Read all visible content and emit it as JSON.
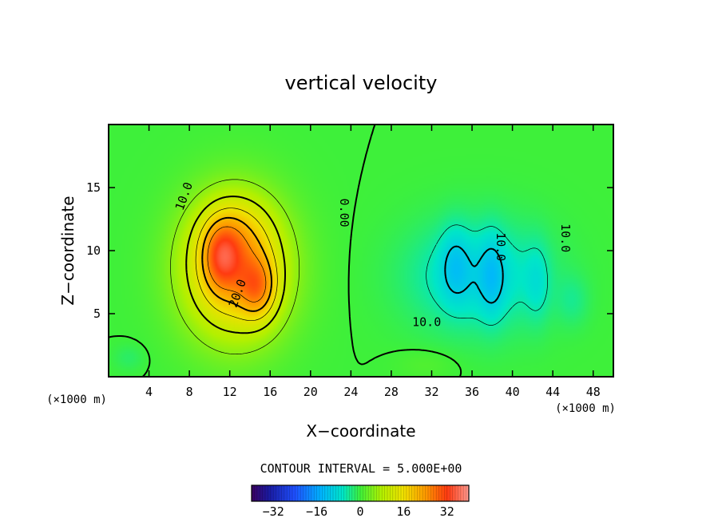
{
  "chart_data": {
    "type": "heatmap",
    "title": "vertical velocity",
    "xlabel": "X−coordinate",
    "ylabel": "Z−coordinate",
    "x_unit_left": "(×1000 m)",
    "x_unit_right": "(×1000 m)",
    "xlim": [
      0,
      50
    ],
    "ylim": [
      0,
      20
    ],
    "xticks": [
      4,
      8,
      12,
      16,
      20,
      24,
      28,
      32,
      36,
      40,
      44,
      48
    ],
    "yticks": [
      5,
      10,
      15
    ],
    "contour_interval_text": "CONTOUR INTERVAL = 5.000E+00",
    "contour_labels": [
      {
        "text": "10.0",
        "x": 7.5,
        "z": 14.3,
        "angle": -70
      },
      {
        "text": "20.0",
        "x": 12.8,
        "z": 6.6,
        "angle": -70
      },
      {
        "text": "0.00",
        "x": 23.3,
        "z": 13.0,
        "angle": 90
      },
      {
        "text": "10.0",
        "x": 38.8,
        "z": 10.3,
        "angle": 90
      },
      {
        "text": "10.0",
        "x": 45.2,
        "z": 11.0,
        "angle": 90
      },
      {
        "text": "10.0",
        "x": 31.5,
        "z": 4.3,
        "angle": 0
      }
    ],
    "field": {
      "description_free_note": "",
      "updraft": {
        "center_x": 12.5,
        "center_z": 8.5,
        "peak": 32
      },
      "downdraft": {
        "center_x": 36.5,
        "center_z": 8.0,
        "peak": -14
      }
    },
    "colorbar": {
      "min": -40,
      "max": 40,
      "ticks": [
        -32,
        -16,
        0,
        16,
        32
      ],
      "tick_labels": [
        "−32",
        "−16",
        "0",
        "16",
        "32"
      ]
    }
  }
}
